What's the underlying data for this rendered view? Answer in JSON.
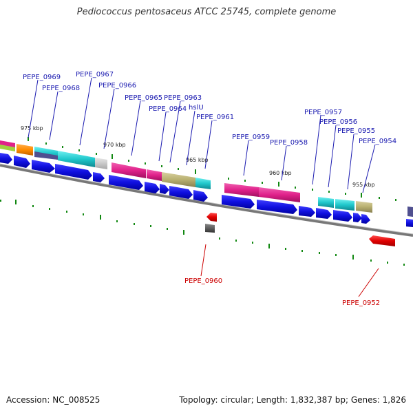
{
  "title": "Pediococcus pentosaceus ATCC 25745, complete genome",
  "footer": {
    "accession": "Accession: NC_008525",
    "summary": "Topology: circular; Length: 1,832,387 bp; Genes: 1,826"
  },
  "kbp_labels": [
    "975 kbp",
    "970 kbp",
    "965 kbp",
    "960 kbp",
    "955 kbp"
  ],
  "gene_labels": {
    "PEPE_0969": "PEPE_0969",
    "PEPE_0968": "PEPE_0968",
    "PEPE_0967": "PEPE_0967",
    "PEPE_0966": "PEPE_0966",
    "PEPE_0965": "PEPE_0965",
    "PEPE_0964": "PEPE_0964",
    "PEPE_0963": "PEPE_0963",
    "hslU": "hslU",
    "PEPE_0961": "PEPE_0961",
    "PEPE_0960": "PEPE_0960",
    "PEPE_0959": "PEPE_0959",
    "PEPE_0958": "PEPE_0958",
    "PEPE_0957": "PEPE_0957",
    "PEPE_0956": "PEPE_0956",
    "PEPE_0955": "PEPE_0955",
    "PEPE_0954": "PEPE_0954",
    "PEPE_0952": "PEPE_0952"
  },
  "colors": {
    "forward_arrow": "#1010e0",
    "reverse_arrow": "#e00000",
    "label_blue": "#1a1ab0",
    "label_red": "#cc0000",
    "tick": "#118811",
    "backbone": "#777777",
    "magenta": "#e0218a",
    "cyan": "#22c8cc",
    "olive": "#b8b070",
    "orange": "#ff8c00",
    "gray": "#c0c0c0"
  }
}
